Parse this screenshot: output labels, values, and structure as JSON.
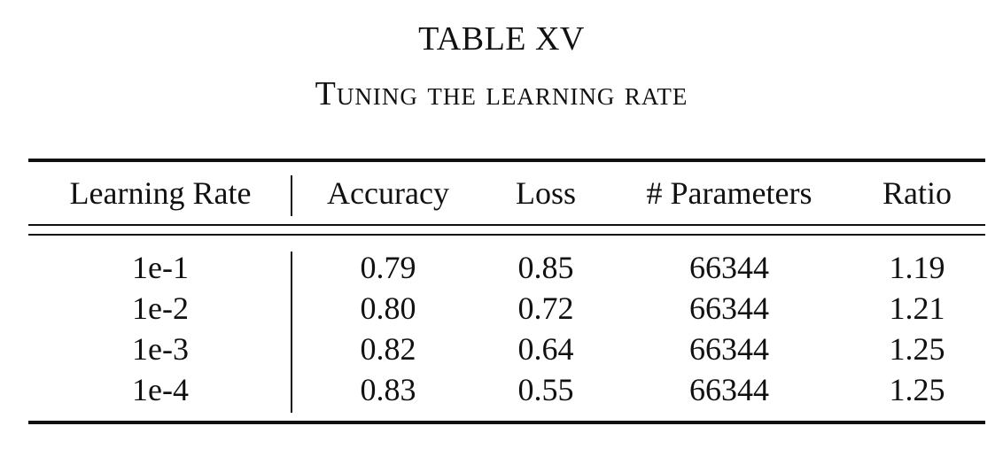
{
  "table": {
    "number": "TABLE XV",
    "caption": "Tuning the learning rate",
    "headers": [
      "Learning Rate",
      "Accuracy",
      "Loss",
      "# Parameters",
      "Ratio"
    ],
    "rows": [
      [
        "1e-1",
        "0.79",
        "0.85",
        "66344",
        "1.19"
      ],
      [
        "1e-2",
        "0.80",
        "0.72",
        "66344",
        "1.21"
      ],
      [
        "1e-3",
        "0.82",
        "0.64",
        "66344",
        "1.25"
      ],
      [
        "1e-4",
        "0.83",
        "0.55",
        "66344",
        "1.25"
      ]
    ]
  }
}
